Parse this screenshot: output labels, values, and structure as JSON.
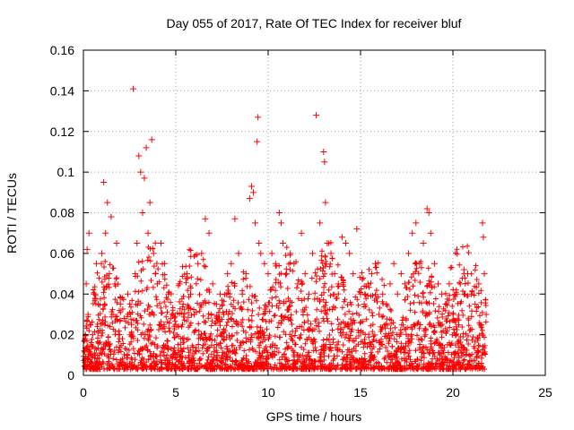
{
  "chart_data": {
    "type": "scatter",
    "title": "Day 055 of 2017, Rate Of TEC Index for receiver bluf",
    "xlabel": "GPS time / hours",
    "ylabel": "ROTI / TECUs",
    "xlim": [
      0,
      25
    ],
    "ylim": [
      0,
      0.16
    ],
    "x_ticks": [
      0,
      5,
      10,
      15,
      20,
      25
    ],
    "x_tick_labels": [
      "0",
      "5",
      "10",
      "15",
      "20",
      "25"
    ],
    "y_ticks": [
      0,
      0.02,
      0.04,
      0.06,
      0.08,
      0.1,
      0.12,
      0.14,
      0.16
    ],
    "y_tick_labels": [
      "0",
      "0.02",
      "0.04",
      "0.06",
      "0.08",
      "0.1",
      "0.12",
      "0.14",
      "0.16"
    ],
    "grid": true,
    "marker": "plus",
    "color": "#ff0000",
    "series": [
      {
        "points": [
          [
            0.05,
            0.012
          ],
          [
            0.1,
            0.018
          ],
          [
            0.15,
            0.045
          ],
          [
            0.2,
            0.062
          ],
          [
            0.25,
            0.03
          ],
          [
            0.3,
            0.07
          ],
          [
            0.35,
            0.025
          ],
          [
            0.4,
            0.015
          ],
          [
            0.5,
            0.02
          ],
          [
            0.6,
            0.04
          ],
          [
            0.7,
            0.055
          ],
          [
            0.8,
            0.035
          ],
          [
            0.9,
            0.022
          ],
          [
            1.0,
            0.06
          ],
          [
            1.1,
            0.095
          ],
          [
            1.2,
            0.07
          ],
          [
            1.3,
            0.085
          ],
          [
            1.4,
            0.05
          ],
          [
            1.5,
            0.078
          ],
          [
            1.6,
            0.03
          ],
          [
            1.7,
            0.045
          ],
          [
            1.8,
            0.065
          ],
          [
            1.9,
            0.02
          ],
          [
            2.0,
            0.035
          ],
          [
            2.2,
            0.028
          ],
          [
            2.4,
            0.04
          ],
          [
            2.6,
            0.025
          ],
          [
            2.7,
            0.141
          ],
          [
            2.8,
            0.05
          ],
          [
            2.9,
            0.065
          ],
          [
            3.0,
            0.108
          ],
          [
            3.1,
            0.1
          ],
          [
            3.2,
            0.08
          ],
          [
            3.3,
            0.097
          ],
          [
            3.4,
            0.112
          ],
          [
            3.5,
            0.07
          ],
          [
            3.6,
            0.085
          ],
          [
            3.7,
            0.116
          ],
          [
            3.8,
            0.06
          ],
          [
            3.9,
            0.05
          ],
          [
            4.0,
            0.045
          ],
          [
            4.2,
            0.065
          ],
          [
            4.4,
            0.055
          ],
          [
            4.6,
            0.04
          ],
          [
            4.8,
            0.03
          ],
          [
            5.0,
            0.025
          ],
          [
            5.2,
            0.045
          ],
          [
            5.4,
            0.035
          ],
          [
            5.6,
            0.05
          ],
          [
            5.8,
            0.04
          ],
          [
            6.0,
            0.03
          ],
          [
            6.2,
            0.055
          ],
          [
            6.4,
            0.06
          ],
          [
            6.6,
            0.077
          ],
          [
            6.8,
            0.07
          ],
          [
            7.0,
            0.045
          ],
          [
            7.2,
            0.035
          ],
          [
            7.4,
            0.04
          ],
          [
            7.6,
            0.03
          ],
          [
            7.8,
            0.05
          ],
          [
            8.0,
            0.055
          ],
          [
            8.2,
            0.077
          ],
          [
            8.4,
            0.06
          ],
          [
            8.6,
            0.04
          ],
          [
            8.8,
            0.05
          ],
          [
            9.0,
            0.087
          ],
          [
            9.1,
            0.093
          ],
          [
            9.2,
            0.09
          ],
          [
            9.3,
            0.075
          ],
          [
            9.4,
            0.115
          ],
          [
            9.45,
            0.127
          ],
          [
            9.5,
            0.065
          ],
          [
            9.6,
            0.06
          ],
          [
            9.8,
            0.055
          ],
          [
            10.0,
            0.05
          ],
          [
            10.2,
            0.06
          ],
          [
            10.4,
            0.055
          ],
          [
            10.6,
            0.08
          ],
          [
            10.7,
            0.075
          ],
          [
            10.8,
            0.065
          ],
          [
            11.0,
            0.05
          ],
          [
            11.2,
            0.06
          ],
          [
            11.4,
            0.055
          ],
          [
            11.6,
            0.045
          ],
          [
            11.8,
            0.07
          ],
          [
            12.0,
            0.05
          ],
          [
            12.2,
            0.04
          ],
          [
            12.4,
            0.06
          ],
          [
            12.6,
            0.128
          ],
          [
            12.8,
            0.075
          ],
          [
            13.0,
            0.11
          ],
          [
            13.05,
            0.105
          ],
          [
            13.1,
            0.085
          ],
          [
            13.2,
            0.065
          ],
          [
            13.4,
            0.06
          ],
          [
            13.6,
            0.05
          ],
          [
            13.8,
            0.045
          ],
          [
            14.0,
            0.068
          ],
          [
            14.2,
            0.065
          ],
          [
            14.4,
            0.06
          ],
          [
            14.6,
            0.05
          ],
          [
            14.8,
            0.072
          ],
          [
            15.0,
            0.04
          ],
          [
            15.2,
            0.035
          ],
          [
            15.4,
            0.045
          ],
          [
            15.6,
            0.05
          ],
          [
            15.8,
            0.055
          ],
          [
            16.0,
            0.03
          ],
          [
            16.2,
            0.04
          ],
          [
            16.4,
            0.035
          ],
          [
            16.6,
            0.045
          ],
          [
            16.8,
            0.055
          ],
          [
            17.0,
            0.04
          ],
          [
            17.2,
            0.05
          ],
          [
            17.4,
            0.045
          ],
          [
            17.6,
            0.06
          ],
          [
            17.8,
            0.07
          ],
          [
            18.0,
            0.075
          ],
          [
            18.2,
            0.055
          ],
          [
            18.4,
            0.065
          ],
          [
            18.6,
            0.082
          ],
          [
            18.7,
            0.08
          ],
          [
            18.8,
            0.07
          ],
          [
            19.0,
            0.055
          ],
          [
            19.2,
            0.045
          ],
          [
            19.4,
            0.04
          ],
          [
            19.6,
            0.035
          ],
          [
            19.8,
            0.045
          ],
          [
            20.0,
            0.03
          ],
          [
            20.2,
            0.04
          ],
          [
            20.4,
            0.045
          ],
          [
            20.6,
            0.052
          ],
          [
            20.8,
            0.05
          ],
          [
            21.0,
            0.04
          ],
          [
            21.2,
            0.035
          ],
          [
            21.4,
            0.045
          ],
          [
            21.6,
            0.075
          ],
          [
            21.65,
            0.068
          ],
          [
            21.7,
            0.05
          ],
          [
            21.8,
            0.03
          ]
        ]
      }
    ]
  }
}
